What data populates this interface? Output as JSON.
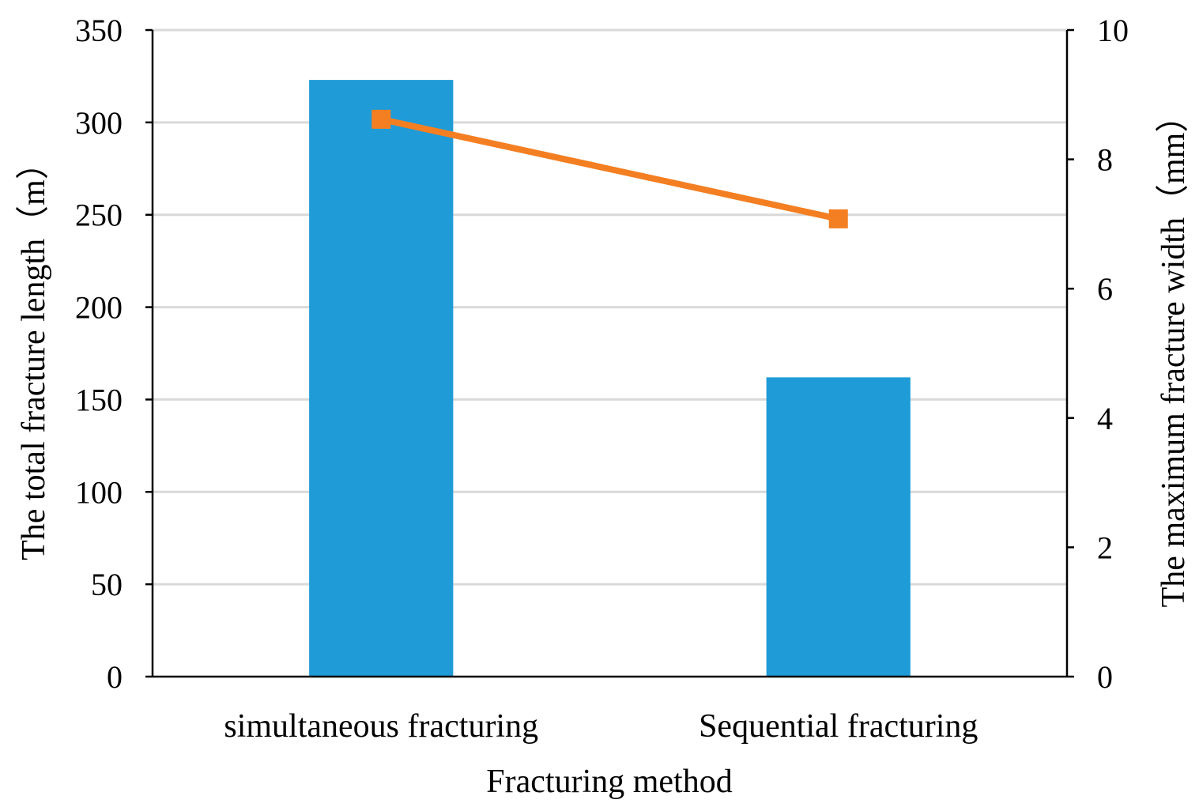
{
  "chart_data": {
    "type": "bar",
    "categories": [
      "simultaneous fracturing",
      "Sequential fracturing"
    ],
    "xlabel": "Fracturing method",
    "ylabel": "The total fracture length（m）",
    "y2label": "The maximum fracture width（mm）",
    "ylim": [
      0,
      350
    ],
    "y2lim": [
      0,
      10
    ],
    "yticks": [
      0,
      50,
      100,
      150,
      200,
      250,
      300,
      350
    ],
    "y2ticks": [
      0,
      2,
      4,
      6,
      8,
      10
    ],
    "grid": true,
    "series": [
      {
        "type": "bar",
        "axis": "left",
        "color": "#1f9bd7",
        "values": [
          323,
          162
        ]
      },
      {
        "type": "line",
        "axis": "right",
        "color": "#f47f22",
        "marker": "square",
        "values": [
          8.62,
          7.08
        ]
      }
    ]
  }
}
